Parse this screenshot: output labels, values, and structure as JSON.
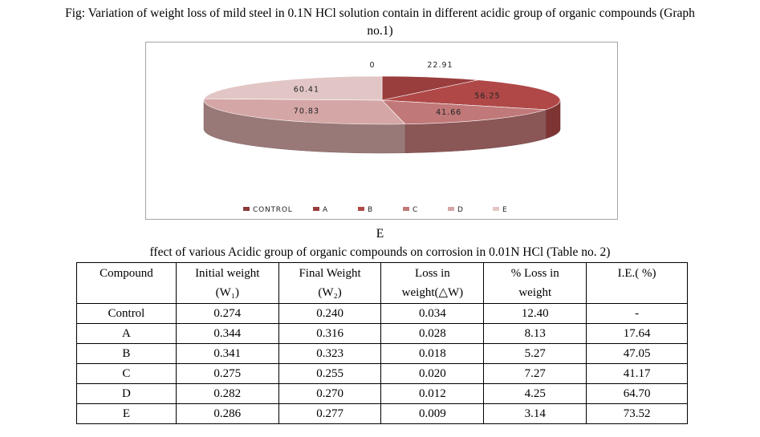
{
  "caption": "Fig: Variation of weight loss of mild steel in 0.1N HCl solution contain in different acidic group of organic compounds (Graph no.1)",
  "caption_lines": [
    "Fig: Variation of weight loss of mild steel in 0.1N HCl solution contain in different acidic group of organic compounds (Graph",
    "no.1)"
  ],
  "below_chart_label": "E",
  "chart_data": {
    "type": "pie",
    "title": "",
    "categories": [
      "CONTROL",
      "A",
      "B",
      "C",
      "D",
      "E"
    ],
    "values": [
      0,
      22.91,
      56.25,
      41.66,
      70.83,
      60.41
    ],
    "labels": [
      "0",
      "22.91",
      "56.25",
      "41.66",
      "70.83",
      "60.41"
    ],
    "colors": [
      "#8b3a3a",
      "#993d3d",
      "#b04848",
      "#c17878",
      "#d5a6a6",
      "#e2c6c6"
    ],
    "legend": "bottom",
    "style": "3d"
  },
  "table": {
    "title": "ffect of various Acidic group of organic compounds on corrosion in 0.01N HCl  (Table no. 2)",
    "headers": [
      [
        "Compound",
        ""
      ],
      [
        "Initial weight",
        "(W₁)"
      ],
      [
        "Final Weight",
        "(W₂)"
      ],
      [
        "Loss in",
        "weight(△W)"
      ],
      [
        "% Loss in",
        "weight"
      ],
      [
        "I.E.( %)",
        ""
      ]
    ],
    "rows": [
      [
        "Control",
        "0.274",
        "0.240",
        "0.034",
        "12.40",
        "-"
      ],
      [
        "A",
        "0.344",
        "0.316",
        "0.028",
        "8.13",
        "17.64"
      ],
      [
        "B",
        "0.341",
        "0.323",
        "0.018",
        "5.27",
        "47.05"
      ],
      [
        "C",
        "0.275",
        "0.255",
        "0.020",
        "7.27",
        "41.17"
      ],
      [
        "D",
        "0.282",
        "0.270",
        "0.012",
        "4.25",
        "64.70"
      ],
      [
        "E",
        "0.286",
        "0.277",
        "0.009",
        "3.14",
        "73.52"
      ]
    ]
  }
}
